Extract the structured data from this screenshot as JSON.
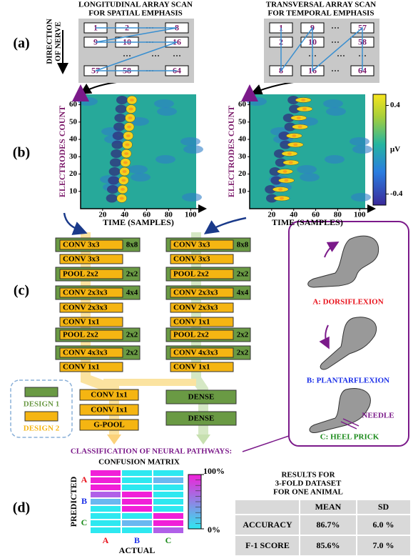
{
  "panel_labels": [
    "(a)",
    "(b)",
    "(c)",
    "(d)"
  ],
  "scan_left": {
    "title": [
      "LONGITUDINAL ARRAY SCAN",
      "FOR SPATIAL EMPHASIS"
    ],
    "direction": [
      "DIRECTION",
      "OF NERVE"
    ],
    "cells": [
      [
        "1",
        "2",
        "8"
      ],
      [
        "9",
        "10",
        "16"
      ],
      [
        "57",
        "58",
        "64"
      ]
    ]
  },
  "scan_right": {
    "title": [
      "TRANSVERSAL ARRAY SCAN",
      "FOR TEMPORAL EMPHASIS"
    ],
    "cells": [
      [
        "1",
        "9",
        "57"
      ],
      [
        "2",
        "10",
        "58"
      ],
      [
        "8",
        "16",
        "64"
      ]
    ]
  },
  "heatmaps": {
    "x_label": "TIME (SAMPLES)",
    "y_label": "ELECTRODES COUNT",
    "xlim": [
      0,
      105
    ],
    "xticks": [
      20,
      40,
      60,
      80,
      100
    ],
    "ylim": [
      0,
      66
    ],
    "yticks": [
      10,
      20,
      30,
      40,
      50,
      60
    ],
    "colorbar": {
      "unit": "μV",
      "lim": [
        -0.5,
        0.5
      ],
      "ticks": [
        0.4,
        -0.4
      ]
    }
  },
  "network": {
    "columns": [
      [
        {
          "layer": "CONV 3x3",
          "size": "8x8"
        },
        {
          "layer": "CONV 3x3"
        },
        {
          "layer": "POOL 2x2",
          "size": "2x2"
        },
        {
          "layer": "CONV 2x3x3",
          "size": "4x4"
        },
        {
          "layer": "CONV 2x3x3"
        },
        {
          "layer": "CONV 1x1"
        },
        {
          "layer": "POOL 2x2",
          "size": "2x2"
        },
        {
          "layer": "CONV 4x3x3",
          "size": "2x2"
        },
        {
          "layer": "CONV 1x1"
        }
      ],
      [
        {
          "layer": "CONV 3x3",
          "size": "8x8"
        },
        {
          "layer": "CONV 3x3"
        },
        {
          "layer": "POOL 2x2",
          "size": "2x2"
        },
        {
          "layer": "CONV 2x3x3",
          "size": "4x4"
        },
        {
          "layer": "CONV 2x3x3"
        },
        {
          "layer": "CONV 1x1"
        },
        {
          "layer": "POOL 2x2",
          "size": "2x2"
        },
        {
          "layer": "CONV 4x3x3",
          "size": "2x2"
        },
        {
          "layer": "CONV 1x1"
        }
      ]
    ],
    "head_design2": [
      "CONV 1x1",
      "CONV 1x1",
      "G-POOL"
    ],
    "head_design1": [
      "DENSE",
      "DENSE"
    ],
    "legend": [
      "DESIGN 1",
      "DESIGN 2"
    ],
    "classification": "CLASSIFICATION OF NEURAL PATHWAYS:"
  },
  "pathways": {
    "classes": [
      "A: DORSIFLEXION",
      "B: PLANTARFLEXION",
      "C: HEEL PRICK"
    ],
    "needle": "NEEDLE"
  },
  "confusion_matrix": {
    "title": "CONFUSION MATRIX",
    "y_label": "PREDICTED",
    "x_label": "ACTUAL",
    "rows": [
      "A",
      "B",
      "C"
    ],
    "cols": [
      "A",
      "B",
      "C"
    ],
    "colorbar_lim": [
      0,
      100
    ],
    "colorbar_ticks": [
      {
        "value": 100,
        "label": "100%"
      },
      {
        "value": 0,
        "label": "0%"
      }
    ]
  },
  "results": {
    "title": [
      "RESULTS FOR",
      "3-FOLD DATASET",
      "FOR ONE ANIMAL"
    ],
    "header": [
      "MEAN",
      "SD"
    ],
    "rows": [
      [
        "ACCURACY",
        "86.7%",
        "6.0 %"
      ],
      [
        "F-1 SCORE",
        "85.6%",
        "7.0 %"
      ]
    ]
  }
}
